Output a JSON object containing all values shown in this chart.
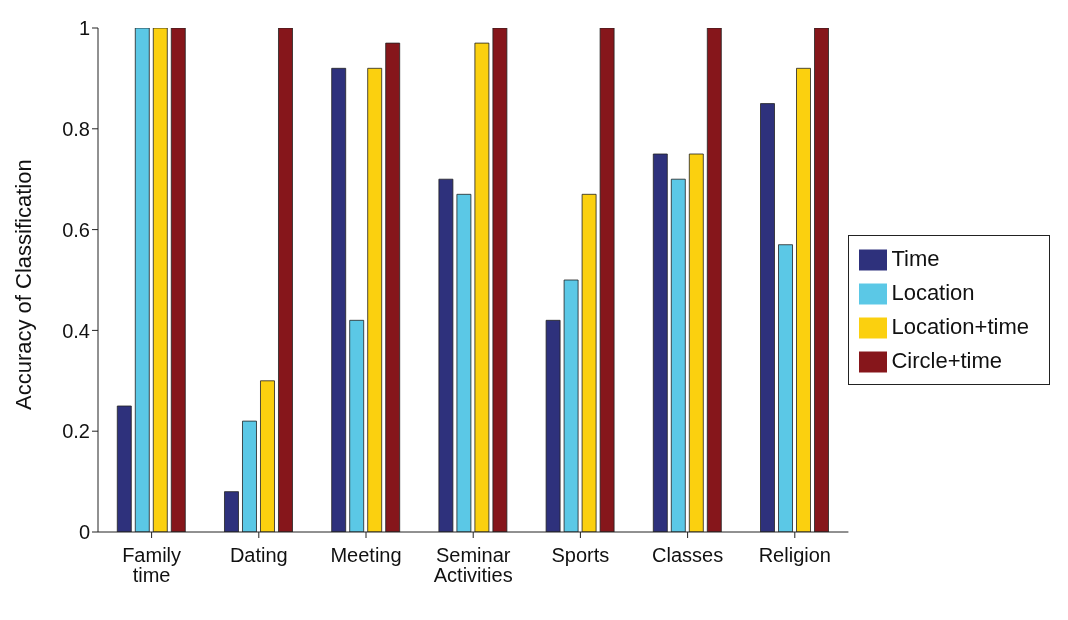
{
  "chart_data": {
    "type": "bar",
    "ylabel": "Accuracy of Classification",
    "categories": [
      "Family time",
      "Dating",
      "Meeting",
      "Seminar Activities",
      "Sports",
      "Classes",
      "Religion"
    ],
    "series": [
      {
        "name": "Time",
        "color": "#2e317c",
        "values": [
          0.25,
          0.08,
          0.92,
          0.7,
          0.42,
          0.75,
          0.85
        ]
      },
      {
        "name": "Location",
        "color": "#5bc8e6",
        "values": [
          1,
          0.22,
          0.42,
          0.67,
          0.5,
          0.7,
          0.57
        ]
      },
      {
        "name": "Location+time",
        "color": "#fbd00f",
        "values": [
          1,
          0.3,
          0.92,
          0.97,
          0.67,
          0.75,
          0.92
        ]
      },
      {
        "name": "Circle+time",
        "color": "#86161b",
        "values": [
          1,
          1,
          0.97,
          1,
          1,
          1,
          1
        ]
      }
    ],
    "ylim": [
      0,
      1
    ],
    "yticks": [
      0,
      0.2,
      0.4,
      0.6,
      0.8,
      1
    ],
    "grid": false,
    "legend": "right"
  }
}
